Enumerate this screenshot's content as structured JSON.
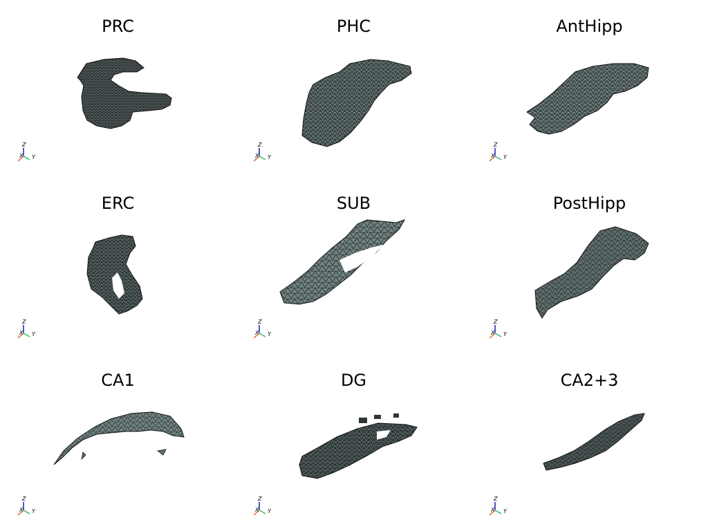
{
  "panels": [
    {
      "title": "PRC",
      "axes": {
        "z": "Z",
        "x": "X",
        "y": "Y"
      }
    },
    {
      "title": "PHC",
      "axes": {
        "z": "Z",
        "x": "X",
        "y": "Y"
      }
    },
    {
      "title": "AntHipp",
      "axes": {
        "z": "Z",
        "x": "X",
        "y": "Y"
      }
    },
    {
      "title": "ERC",
      "axes": {
        "z": "Z",
        "x": "X",
        "y": "Y"
      }
    },
    {
      "title": "SUB",
      "axes": {
        "z": "Z",
        "x": "X",
        "y": "Y"
      }
    },
    {
      "title": "PostHipp",
      "axes": {
        "z": "Z",
        "x": "X",
        "y": "Y"
      }
    },
    {
      "title": "CA1",
      "axes": {
        "z": "Z",
        "x": "X",
        "y": "Y"
      }
    },
    {
      "title": "DG",
      "axes": {
        "z": "Z",
        "x": "X",
        "y": "Y"
      }
    },
    {
      "title": "CA2+3",
      "axes": {
        "z": "Z",
        "x": "X",
        "y": "Y"
      }
    }
  ],
  "colors": {
    "mesh_fill": "#9fb3b3",
    "mesh_edge": "#1a1a1a",
    "axis_z": "#1f2fbf",
    "axis_x": "#e07a4a",
    "axis_y": "#4fbf7a"
  }
}
